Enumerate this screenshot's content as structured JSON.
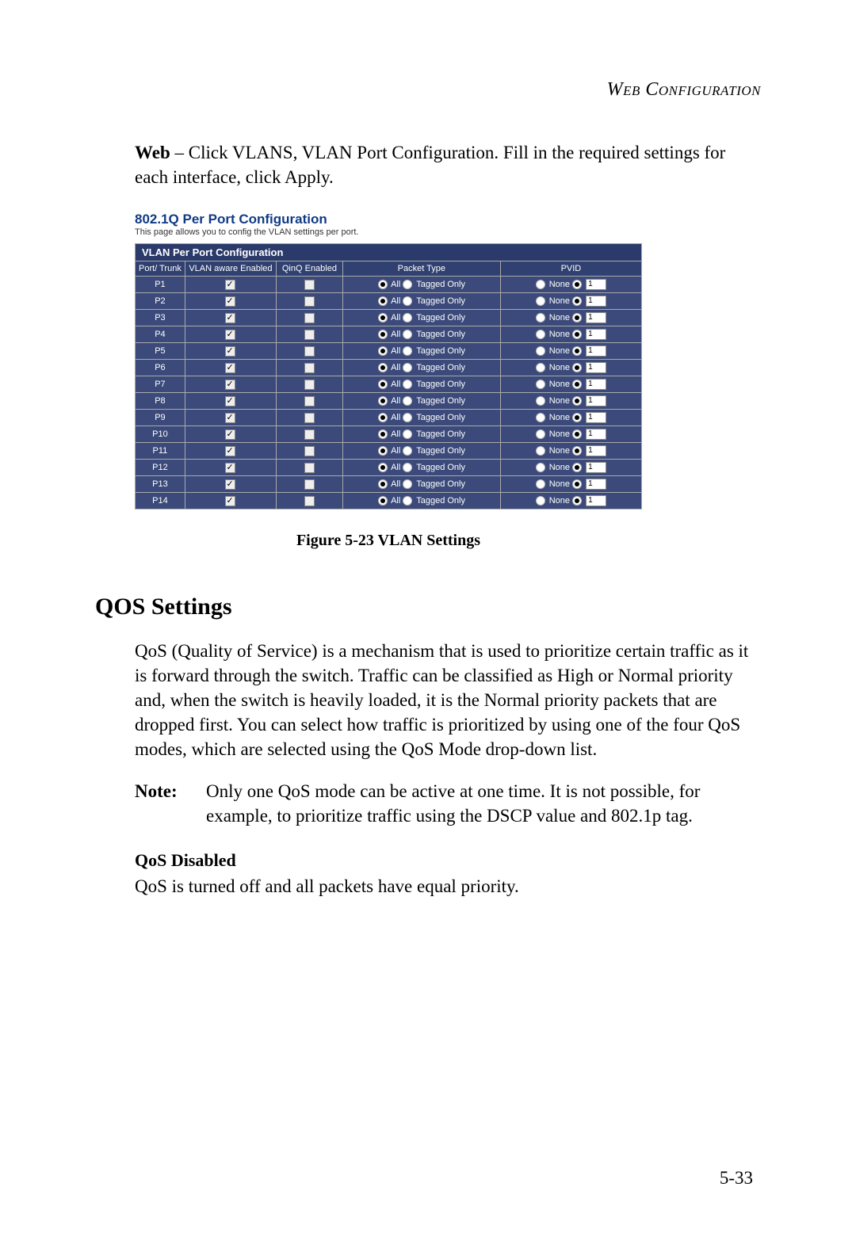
{
  "header": {
    "running_head": "Web Configuration"
  },
  "intro": {
    "lead_bold": "Web",
    "rest": " – Click VLANS, VLAN Port Configuration. Fill in the required settings for each interface, click Apply."
  },
  "vlan": {
    "title": "802.1Q Per Port Configuration",
    "subtitle": "This page allows you to config the VLAN settings per port.",
    "section_header": "VLAN Per Port Configuration",
    "columns": {
      "port": "Port/ Trunk",
      "vlan_aware": "VLAN aware Enabled",
      "qinq": "QinQ Enabled",
      "packet_type": "Packet Type",
      "pvid": "PVID"
    },
    "packet_labels": {
      "all": "All",
      "tagged": "Tagged Only"
    },
    "pvid_labels": {
      "none": "None"
    },
    "rows": [
      {
        "port": "P1",
        "vlan_aware": true,
        "qinq": false,
        "packet_all": true,
        "pvid_none": false,
        "pvid_value": "1"
      },
      {
        "port": "P2",
        "vlan_aware": true,
        "qinq": false,
        "packet_all": true,
        "pvid_none": false,
        "pvid_value": "1"
      },
      {
        "port": "P3",
        "vlan_aware": true,
        "qinq": false,
        "packet_all": true,
        "pvid_none": false,
        "pvid_value": "1"
      },
      {
        "port": "P4",
        "vlan_aware": true,
        "qinq": false,
        "packet_all": true,
        "pvid_none": false,
        "pvid_value": "1"
      },
      {
        "port": "P5",
        "vlan_aware": true,
        "qinq": false,
        "packet_all": true,
        "pvid_none": false,
        "pvid_value": "1"
      },
      {
        "port": "P6",
        "vlan_aware": true,
        "qinq": false,
        "packet_all": true,
        "pvid_none": false,
        "pvid_value": "1"
      },
      {
        "port": "P7",
        "vlan_aware": true,
        "qinq": false,
        "packet_all": true,
        "pvid_none": false,
        "pvid_value": "1"
      },
      {
        "port": "P8",
        "vlan_aware": true,
        "qinq": false,
        "packet_all": true,
        "pvid_none": false,
        "pvid_value": "1"
      },
      {
        "port": "P9",
        "vlan_aware": true,
        "qinq": false,
        "packet_all": true,
        "pvid_none": false,
        "pvid_value": "1"
      },
      {
        "port": "P10",
        "vlan_aware": true,
        "qinq": false,
        "packet_all": true,
        "pvid_none": false,
        "pvid_value": "1"
      },
      {
        "port": "P11",
        "vlan_aware": true,
        "qinq": false,
        "packet_all": true,
        "pvid_none": false,
        "pvid_value": "1"
      },
      {
        "port": "P12",
        "vlan_aware": true,
        "qinq": false,
        "packet_all": true,
        "pvid_none": false,
        "pvid_value": "1"
      },
      {
        "port": "P13",
        "vlan_aware": true,
        "qinq": false,
        "packet_all": true,
        "pvid_none": false,
        "pvid_value": "1"
      },
      {
        "port": "P14",
        "vlan_aware": true,
        "qinq": false,
        "packet_all": true,
        "pvid_none": false,
        "pvid_value": "1"
      }
    ],
    "col_widths": {
      "port": "60px",
      "vlan_aware": "100px",
      "qinq": "80px",
      "packet_type": "170px",
      "pvid": "150px"
    },
    "colors": {
      "title_color": "#103a85",
      "header_bg": "#2a3a6a",
      "colhead_bg": "#304070",
      "cell_bg": "#3b4a7a",
      "border": "#aaaaaa",
      "text": "#ffffff"
    }
  },
  "figure_caption": "Figure 5-23  VLAN Settings",
  "qos": {
    "heading": "QOS Settings",
    "para": "QoS (Quality of Service) is a mechanism that is used to prioritize certain traffic as it is forward through the switch. Traffic can be classified as High or Normal priority and, when the switch is heavily loaded, it is the Normal priority packets that are dropped first. You can select how traffic is prioritized by using one of the four QoS modes, which are selected using the QoS Mode drop-down list.",
    "note_label": "Note:",
    "note_text": "Only one QoS mode can be active at one time. It is not possible, for example, to prioritize traffic using the DSCP value and 802.1p tag.",
    "sub_heading": "QoS Disabled",
    "sub_text": "QoS is turned off and all packets have equal priority."
  },
  "page_number": "5-33"
}
